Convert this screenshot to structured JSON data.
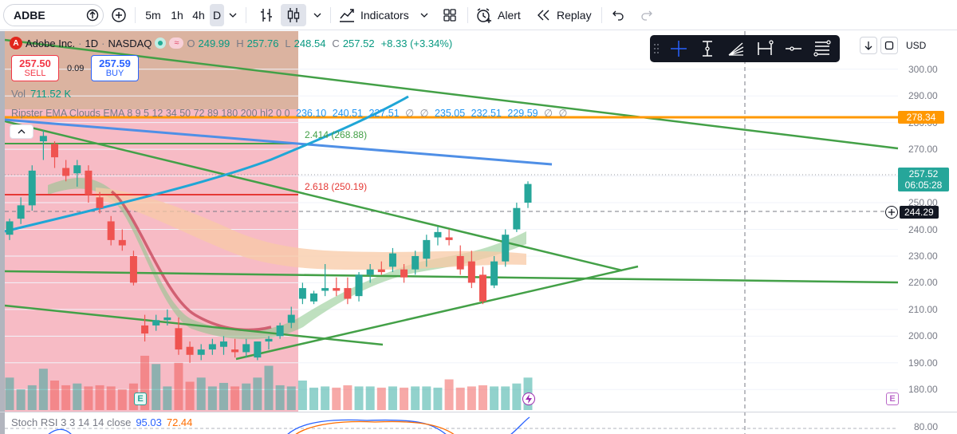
{
  "toolbar": {
    "symbol": "ADBE",
    "intervals": [
      "5m",
      "1h",
      "4h",
      "D"
    ],
    "active_interval": "D",
    "indicators_label": "Indicators",
    "alert_label": "Alert",
    "replay_label": "Replay"
  },
  "legend": {
    "logo_letter": "A",
    "name": "Adobe Inc.",
    "sep1": "·",
    "interval": "1D",
    "sep2": "·",
    "exchange": "NASDAQ",
    "ohlc": [
      {
        "label": "O",
        "value": "249.99"
      },
      {
        "label": "H",
        "value": "257.76"
      },
      {
        "label": "L",
        "value": "248.54"
      },
      {
        "label": "C",
        "value": "257.52"
      }
    ],
    "change": "+8.33 (+3.34%)",
    "wave_glyph": "≈"
  },
  "trade": {
    "sell_price": "257.50",
    "sell_label": "SELL",
    "spread": "0.09",
    "buy_price": "257.59",
    "buy_label": "BUY"
  },
  "volume": {
    "label": "Vol",
    "value": "711.52 K"
  },
  "ema": {
    "label": "Ripster EMA Clouds EMA 8 9 5 12 34 50 72 89 180 200 hl2 0 0",
    "values": [
      "236.10",
      "240.51",
      "227.51",
      "∅",
      "∅",
      "235.05",
      "232.51",
      "229.59",
      "∅",
      "∅"
    ]
  },
  "fib": [
    {
      "label": "2.414 (268.88)"
    },
    {
      "label": "2.618 (250.19)"
    }
  ],
  "axis": {
    "ticks": [
      "300.00",
      "290.00",
      "280.00",
      "270.00",
      "260.00",
      "250.00",
      "240.00",
      "230.00",
      "220.00",
      "210.00",
      "200.00",
      "190.00",
      "180.00"
    ],
    "orange_level": "278.34",
    "last_price": "257.52",
    "countdown": "06:05:28",
    "crosshair_price": "244.29",
    "currency": "USD"
  },
  "stoch": {
    "label": "Stoch RSI 3 3 14 14 close",
    "k": "95.03",
    "d": "72.44",
    "axis_label": "80.00"
  },
  "events": {
    "earnings_letter": "E"
  },
  "colors": {
    "up": "#26a69a",
    "down": "#ef5350",
    "orange_line": "#ff9800",
    "blue_line": "#4f8fe6",
    "cyan_curve": "#1fa6d6",
    "green_lines": "#43a047",
    "red_fib": "#e53935"
  },
  "chart_data": {
    "type": "candlestick",
    "ylim": [
      175,
      305
    ],
    "candles": [
      {
        "o": 238,
        "h": 244,
        "l": 236,
        "c": 243
      },
      {
        "o": 244,
        "h": 252,
        "l": 242,
        "c": 249
      },
      {
        "o": 249,
        "h": 264,
        "l": 247,
        "c": 262
      },
      {
        "o": 273,
        "h": 277,
        "l": 266,
        "c": 275
      },
      {
        "o": 272,
        "h": 273,
        "l": 263,
        "c": 267
      },
      {
        "o": 263,
        "h": 266,
        "l": 258,
        "c": 260
      },
      {
        "o": 261,
        "h": 266,
        "l": 256,
        "c": 264
      },
      {
        "o": 262,
        "h": 264,
        "l": 250,
        "c": 253
      },
      {
        "o": 252,
        "h": 254,
        "l": 246,
        "c": 248
      },
      {
        "o": 243,
        "h": 245,
        "l": 234,
        "c": 236
      },
      {
        "o": 236,
        "h": 240,
        "l": 232,
        "c": 234
      },
      {
        "o": 230,
        "h": 232,
        "l": 219,
        "c": 220
      },
      {
        "o": 204,
        "h": 208,
        "l": 198,
        "c": 201
      },
      {
        "o": 204,
        "h": 208,
        "l": 202,
        "c": 206
      },
      {
        "o": 206,
        "h": 210,
        "l": 204,
        "c": 207
      },
      {
        "o": 203,
        "h": 207,
        "l": 193,
        "c": 195
      },
      {
        "o": 196,
        "h": 198,
        "l": 190,
        "c": 193
      },
      {
        "o": 193,
        "h": 197,
        "l": 191,
        "c": 195
      },
      {
        "o": 195,
        "h": 199,
        "l": 193,
        "c": 197
      },
      {
        "o": 196,
        "h": 200,
        "l": 193,
        "c": 198
      },
      {
        "o": 195,
        "h": 199,
        "l": 192,
        "c": 194
      },
      {
        "o": 194,
        "h": 199,
        "l": 192,
        "c": 197
      },
      {
        "o": 192,
        "h": 198,
        "l": 191,
        "c": 198
      },
      {
        "o": 198,
        "h": 200,
        "l": 195,
        "c": 199
      },
      {
        "o": 200,
        "h": 205,
        "l": 199,
        "c": 204
      },
      {
        "o": 205,
        "h": 211,
        "l": 203,
        "c": 208
      },
      {
        "o": 214,
        "h": 220,
        "l": 212,
        "c": 218
      },
      {
        "o": 213,
        "h": 217,
        "l": 212,
        "c": 216
      },
      {
        "o": 217,
        "h": 227,
        "l": 215,
        "c": 218
      },
      {
        "o": 218,
        "h": 222,
        "l": 215,
        "c": 217
      },
      {
        "o": 218,
        "h": 222,
        "l": 212,
        "c": 214
      },
      {
        "o": 215,
        "h": 224,
        "l": 213,
        "c": 223
      },
      {
        "o": 223,
        "h": 227,
        "l": 220,
        "c": 225
      },
      {
        "o": 225,
        "h": 228,
        "l": 223,
        "c": 224
      },
      {
        "o": 226,
        "h": 233,
        "l": 224,
        "c": 231
      },
      {
        "o": 225,
        "h": 227,
        "l": 220,
        "c": 222
      },
      {
        "o": 225,
        "h": 232,
        "l": 223,
        "c": 230
      },
      {
        "o": 229,
        "h": 238,
        "l": 226,
        "c": 236
      },
      {
        "o": 237,
        "h": 241,
        "l": 234,
        "c": 239
      },
      {
        "o": 237,
        "h": 240,
        "l": 234,
        "c": 236
      },
      {
        "o": 230,
        "h": 234,
        "l": 223,
        "c": 225
      },
      {
        "o": 228,
        "h": 232,
        "l": 218,
        "c": 220
      },
      {
        "o": 223,
        "h": 226,
        "l": 212,
        "c": 213
      },
      {
        "o": 219,
        "h": 230,
        "l": 218,
        "c": 228
      },
      {
        "o": 228,
        "h": 240,
        "l": 226,
        "c": 238
      },
      {
        "o": 240,
        "h": 250,
        "l": 239,
        "c": 248
      },
      {
        "o": 250,
        "h": 258,
        "l": 248,
        "c": 257
      }
    ],
    "volume": [
      55,
      35,
      42,
      70,
      50,
      42,
      45,
      40,
      42,
      40,
      35,
      45,
      92,
      78,
      40,
      80,
      48,
      55,
      40,
      46,
      40,
      45,
      55,
      75,
      42,
      40,
      50,
      38,
      40,
      38,
      42,
      40,
      40,
      38,
      40,
      38,
      40,
      40,
      38,
      52,
      38,
      40,
      42,
      40,
      40,
      45,
      55
    ],
    "volume_ylim": [
      0,
      100
    ]
  }
}
